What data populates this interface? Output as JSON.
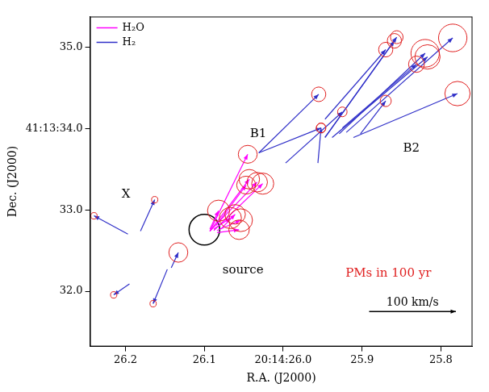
{
  "chart_data": {
    "type": "scatter",
    "x_label": "R.A. (J2000)",
    "y_label": "Dec. (J2000)",
    "xlim": [
      26.245,
      25.76
    ],
    "xticks": [
      26.2,
      26.1,
      {
        "value": 26.0,
        "label": "20:14:26.0"
      },
      25.9,
      25.8
    ],
    "ylim": [
      31.32,
      35.38
    ],
    "yticks": [
      {
        "value": 32,
        "label": "32.0"
      },
      {
        "value": 33,
        "label": "33.0"
      },
      {
        "value": 34,
        "label": "41:13:34.0"
      },
      {
        "value": 35,
        "label": "35.0"
      }
    ],
    "grid": false,
    "legend": "top-left",
    "source": [
      26.1,
      32.757
    ],
    "series": [
      {
        "name": "H₂O",
        "color": "#ff00ff",
        "line_style": "solid",
        "start": [
          [
            26.093,
            32.739
          ],
          [
            26.093,
            32.739
          ],
          [
            26.093,
            32.739
          ],
          [
            26.088,
            32.748
          ],
          [
            26.085,
            32.811
          ],
          [
            26.093,
            32.766
          ],
          [
            26.088,
            32.766
          ],
          [
            26.084,
            32.748
          ],
          [
            26.084,
            32.721
          ],
          [
            26.079,
            32.766
          ]
        ],
        "end": [
          [
            26.045,
            33.685
          ],
          [
            26.043,
            33.378
          ],
          [
            26.033,
            33.342
          ],
          [
            26.026,
            33.324
          ],
          [
            26.047,
            33.306
          ],
          [
            26.082,
            32.991
          ],
          [
            26.067,
            32.901
          ],
          [
            26.054,
            32.874
          ],
          [
            26.056,
            32.757
          ],
          [
            26.061,
            32.946
          ]
        ],
        "err": [
          [
            0.012,
            0.11
          ],
          [
            0.013,
            0.12
          ],
          [
            0.013,
            0.12
          ],
          [
            0.014,
            0.13
          ],
          [
            0.012,
            0.11
          ],
          [
            0.014,
            0.13
          ],
          [
            0.014,
            0.13
          ],
          [
            0.015,
            0.14
          ],
          [
            0.013,
            0.12
          ],
          [
            0.013,
            0.12
          ]
        ]
      },
      {
        "name": "H₂",
        "color": "#2f2fc8",
        "line_style": "solid",
        "start": [
          [
            26.197,
            32.703
          ],
          [
            26.181,
            32.739
          ],
          [
            26.195,
            32.09
          ],
          [
            26.147,
            32.27
          ],
          [
            26.142,
            32.288
          ],
          [
            26.031,
            33.703
          ],
          [
            26.031,
            33.703
          ],
          [
            25.997,
            33.577
          ],
          [
            25.947,
            33.892
          ],
          [
            25.947,
            33.892
          ],
          [
            25.929,
            33.937
          ],
          [
            25.938,
            33.892
          ],
          [
            25.92,
            33.955
          ],
          [
            25.911,
            33.892
          ],
          [
            25.902,
            33.937
          ],
          [
            25.956,
            33.577
          ],
          [
            25.947,
            34.117
          ],
          [
            25.925,
            34.009
          ]
        ],
        "end": [
          [
            26.24,
            32.928
          ],
          [
            26.163,
            33.126
          ],
          [
            26.215,
            31.955
          ],
          [
            26.165,
            31.847
          ],
          [
            26.133,
            32.477
          ],
          [
            25.955,
            34.423
          ],
          [
            25.952,
            34.009
          ],
          [
            25.925,
            34.207
          ],
          [
            25.859,
            35.081
          ],
          [
            25.856,
            35.126
          ],
          [
            25.82,
            34.928
          ],
          [
            25.817,
            34.883
          ],
          [
            25.785,
            35.117
          ],
          [
            25.779,
            34.432
          ],
          [
            25.87,
            34.342
          ],
          [
            25.952,
            34.009
          ],
          [
            25.87,
            34.973
          ],
          [
            25.831,
            34.793
          ]
        ],
        "err": [
          [
            0.004,
            0.04
          ],
          [
            0.004,
            0.04
          ],
          [
            0.004,
            0.04
          ],
          [
            0.004,
            0.04
          ],
          [
            0.012,
            0.12
          ],
          [
            0.009,
            0.09
          ],
          [
            0.006,
            0.06
          ],
          [
            0.006,
            0.06
          ],
          [
            0.009,
            0.09
          ],
          [
            0.008,
            0.08
          ],
          [
            0.018,
            0.17
          ],
          [
            0.016,
            0.15
          ],
          [
            0.018,
            0.17
          ],
          [
            0.016,
            0.15
          ],
          [
            0.007,
            0.07
          ],
          [
            0.006,
            0.06
          ],
          [
            0.009,
            0.09
          ],
          [
            0.01,
            0.1
          ]
        ]
      }
    ],
    "annotations": [
      {
        "text": "X",
        "color": "#000000"
      },
      {
        "text": "B1",
        "color": "#000000"
      },
      {
        "text": "B2",
        "color": "#000000"
      },
      {
        "text": "source",
        "color": "#000000"
      },
      {
        "text": "PMs in 100 yr",
        "color": "#e02020"
      }
    ],
    "scale_bar": {
      "label": "100 km/s",
      "x": [
        25.891,
        25.781
      ],
      "y": 31.75
    }
  }
}
